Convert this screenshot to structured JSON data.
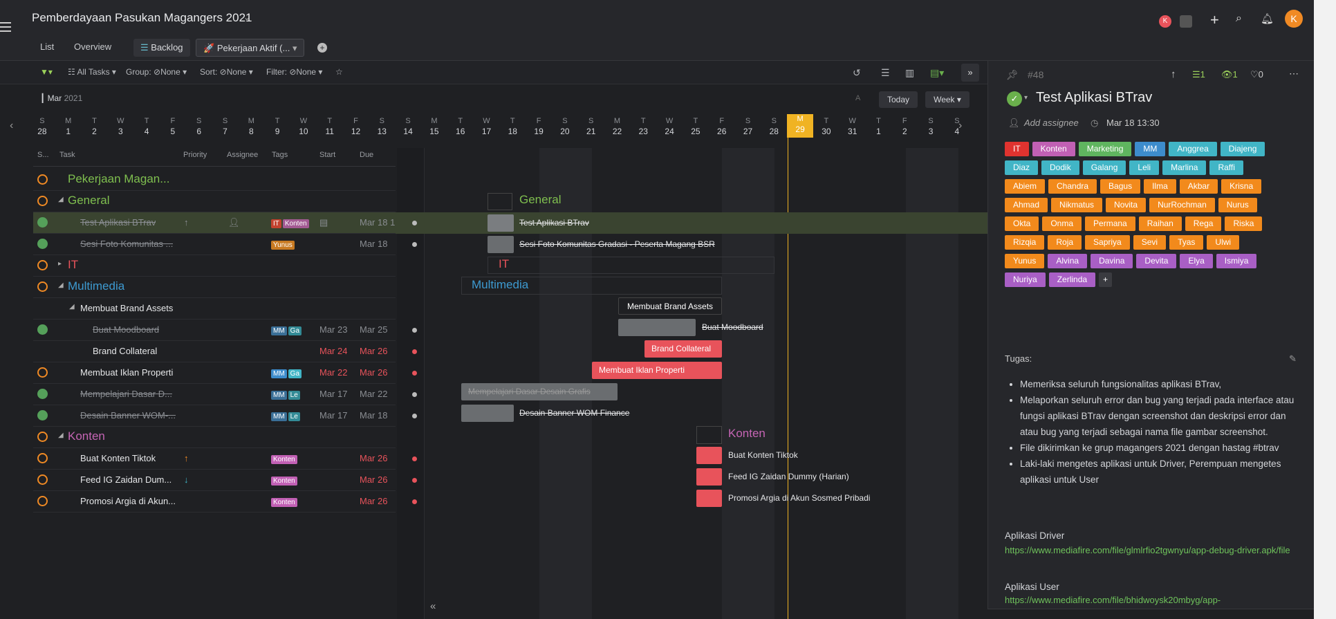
{
  "header": {
    "title": "Pemberdayaan Pasukan Magangers 2021",
    "tabs": [
      "List",
      "Overview"
    ],
    "backlog": "Backlog",
    "active_tab": "Pekerjaan Aktif (...",
    "avatar_badge": "K",
    "user_initial": "K"
  },
  "toolbar": {
    "all_tasks": "All Tasks",
    "group": "Group:",
    "group_val": "None",
    "sort": "Sort:",
    "sort_val": "None",
    "filter": "Filter:",
    "filter_val": "None"
  },
  "timeline": {
    "month": "Mar",
    "year": "2021",
    "today_btn": "Today",
    "week_btn": "Week",
    "days": [
      [
        "S",
        "28"
      ],
      [
        "M",
        "1"
      ],
      [
        "T",
        "2"
      ],
      [
        "W",
        "3"
      ],
      [
        "T",
        "4"
      ],
      [
        "F",
        "5"
      ],
      [
        "S",
        "6"
      ],
      [
        "S",
        "7"
      ],
      [
        "M",
        "8"
      ],
      [
        "T",
        "9"
      ],
      [
        "W",
        "10"
      ],
      [
        "T",
        "11"
      ],
      [
        "F",
        "12"
      ],
      [
        "S",
        "13"
      ],
      [
        "S",
        "14"
      ],
      [
        "M",
        "15"
      ],
      [
        "T",
        "16"
      ],
      [
        "W",
        "17"
      ],
      [
        "T",
        "18"
      ],
      [
        "F",
        "19"
      ],
      [
        "S",
        "20"
      ],
      [
        "S",
        "21"
      ],
      [
        "M",
        "22"
      ],
      [
        "T",
        "23"
      ],
      [
        "W",
        "24"
      ],
      [
        "T",
        "25"
      ],
      [
        "F",
        "26"
      ],
      [
        "S",
        "27"
      ],
      [
        "S",
        "28"
      ],
      [
        "M",
        "29"
      ],
      [
        "T",
        "30"
      ],
      [
        "W",
        "31"
      ],
      [
        "T",
        "1"
      ],
      [
        "F",
        "2"
      ],
      [
        "S",
        "3"
      ],
      [
        "S",
        "4"
      ]
    ]
  },
  "columns": {
    "status": "S...",
    "task": "Task",
    "priority": "Priority",
    "assignee": "Assignee",
    "tags": "Tags",
    "start": "Start",
    "due": "Due"
  },
  "rows": [
    {
      "name": "Pekerjaan Magan...",
      "kind": "project"
    },
    {
      "name": "General",
      "kind": "section-g"
    },
    {
      "name": "Test Aplikasi BTrav",
      "kind": "done",
      "start": "",
      "due": "Mar 18 1",
      "tags": [
        "IT",
        "Konten"
      ],
      "prio": "up"
    },
    {
      "name": "Sesi Foto Komunitas ...",
      "kind": "done",
      "due": "Mar 18",
      "tags": [
        "Yunus"
      ]
    },
    {
      "name": "IT",
      "kind": "section-it"
    },
    {
      "name": "Multimedia",
      "kind": "section-mm"
    },
    {
      "name": "Membuat Brand Assets",
      "kind": "sub"
    },
    {
      "name": "Buat Moodboard",
      "kind": "done2",
      "start": "Mar 23",
      "due": "Mar 25",
      "tags": [
        "MM",
        "Ga"
      ]
    },
    {
      "name": "Brand Collateral",
      "kind": "open2",
      "start": "Mar 24",
      "due": "Mar 26"
    },
    {
      "name": "Membuat Iklan Properti",
      "kind": "open",
      "start": "Mar 22",
      "due": "Mar 26",
      "tags": [
        "MM",
        "Ga"
      ]
    },
    {
      "name": "Mempelajari Dasar D...",
      "kind": "done",
      "start": "Mar 17",
      "due": "Mar 22",
      "tags": [
        "MM",
        "Le"
      ]
    },
    {
      "name": "Desain Banner WOM-...",
      "kind": "done",
      "start": "Mar 17",
      "due": "Mar 18",
      "tags": [
        "MM",
        "Le"
      ]
    },
    {
      "name": "Konten",
      "kind": "section-k"
    },
    {
      "name": "Buat Konten Tiktok",
      "kind": "open",
      "due": "Mar 26",
      "tags": [
        "Konten"
      ],
      "prio": "up"
    },
    {
      "name": "Feed IG Zaidan Dum...",
      "kind": "open",
      "due": "Mar 26",
      "tags": [
        "Konten"
      ],
      "prio": "down"
    },
    {
      "name": "Promosi Argia di Akun...",
      "kind": "open",
      "due": "Mar 26",
      "tags": [
        "Konten"
      ]
    }
  ],
  "gantt": {
    "general": "General",
    "it": "IT",
    "multimedia": "Multimedia",
    "konten": "Konten",
    "test": "Test Aplikasi BTrav",
    "sesi": "Sesi Foto Komunitas Gradasi - Peserta Magang BSR",
    "brand_assets": "Membuat Brand Assets",
    "moodboard": "Buat Moodboard",
    "collateral": "Brand Collateral",
    "iklan": "Membuat Iklan Properti",
    "mempelajari": "Mempelajari Dasar Desain Grafis",
    "banner": "Desain Banner WOM Finance",
    "tiktok": "Buat Konten Tiktok",
    "feed": "Feed IG Zaidan Dummy (Harian)",
    "promosi": "Promosi Argia di Akun Sosmed Pribadi"
  },
  "panel": {
    "id": "#48",
    "subtasks": "1",
    "watchers": "1",
    "likes": "0",
    "title": "Test Aplikasi BTrav",
    "assignee": "Add assignee",
    "date": "Mar 18 13:30",
    "tags": [
      [
        "IT",
        "it"
      ],
      [
        "Konten",
        "k"
      ],
      [
        "Marketing",
        "m"
      ],
      [
        "MM",
        "mm"
      ],
      [
        "Anggrea",
        "c"
      ],
      [
        "Diajeng",
        "c"
      ],
      [
        "Diaz",
        "c"
      ],
      [
        "Dodik",
        "c"
      ],
      [
        "Galang",
        "c"
      ],
      [
        "Leli",
        "c"
      ],
      [
        "Marlina",
        "c"
      ],
      [
        "Raffi",
        "c"
      ],
      [
        "Abiem",
        "o"
      ],
      [
        "Chandra",
        "o"
      ],
      [
        "Bagus",
        "o"
      ],
      [
        "Ilma",
        "o"
      ],
      [
        "Akbar",
        "o"
      ],
      [
        "Krisna",
        "o"
      ],
      [
        "Ahmad",
        "o"
      ],
      [
        "Nikmatus",
        "o"
      ],
      [
        "Novita",
        "o"
      ],
      [
        "NurRochman",
        "o"
      ],
      [
        "Nurus",
        "o"
      ],
      [
        "Okta",
        "o"
      ],
      [
        "Onma",
        "o"
      ],
      [
        "Permana",
        "o"
      ],
      [
        "Raihan",
        "o"
      ],
      [
        "Rega",
        "o"
      ],
      [
        "Riska",
        "o"
      ],
      [
        "Rizqia",
        "o"
      ],
      [
        "Roja",
        "o"
      ],
      [
        "Sapriya",
        "o"
      ],
      [
        "Sevi",
        "o"
      ],
      [
        "Tyas",
        "o"
      ],
      [
        "Ulwi",
        "o"
      ],
      [
        "Yunus",
        "o"
      ],
      [
        "Alvina",
        "p"
      ],
      [
        "Davina",
        "p"
      ],
      [
        "Devita",
        "p"
      ],
      [
        "Elya",
        "p"
      ],
      [
        "Ismiya",
        "p"
      ],
      [
        "Nuriya",
        "p"
      ],
      [
        "Zerlinda",
        "p"
      ]
    ],
    "tugas": "Tugas:",
    "items": [
      "Memeriksa seluruh fungsionalitas aplikasi BTrav,",
      "Melaporkan seluruh error dan bug yang terjadi pada interface atau fungsi aplikasi BTrav dengan screenshot dan deskripsi error dan atau bug yang terjadi sebagai nama file gambar screenshot.",
      "File dikirimkan ke grup magangers 2021 dengan hastag #btrav",
      "Laki-laki mengetes aplikasi untuk Driver, Perempuan mengetes aplikasi untuk User"
    ],
    "driver_label": "Aplikasi Driver",
    "driver_link": "https://www.mediafire.com/file/glmlrfio2tgwnyu/app-debug-driver.apk/file",
    "user_label": "Aplikasi User",
    "user_link": "https://www.mediafire.com/file/bhidwoysk20mbyg/app-"
  },
  "colors": {
    "accent": "#f5a623",
    "today": "#f0b323",
    "green": "#6ab04c"
  }
}
